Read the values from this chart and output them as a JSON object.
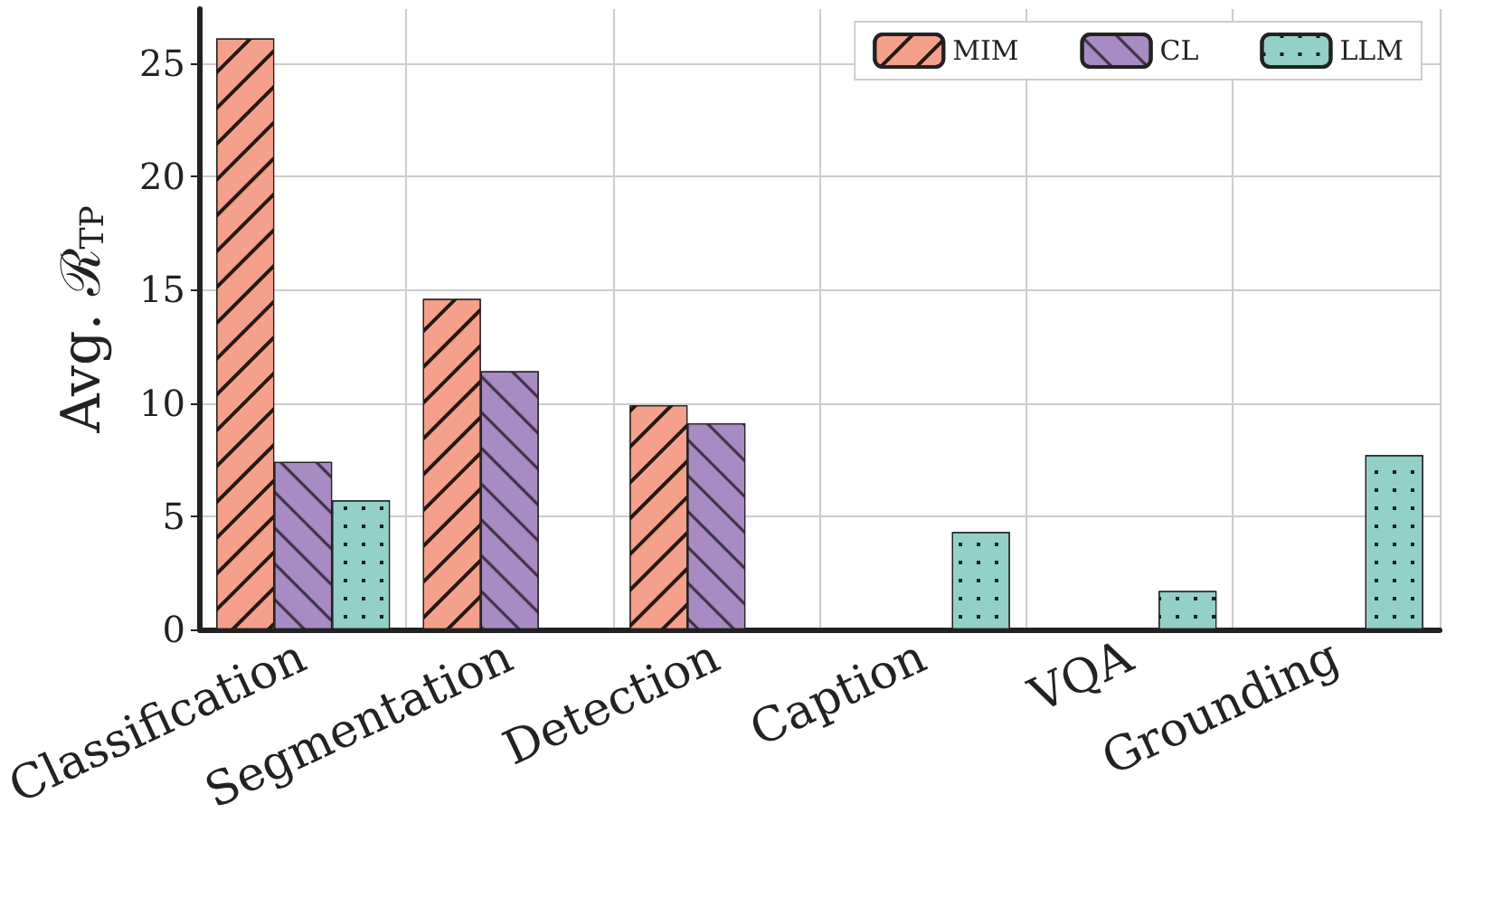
{
  "chart_data": {
    "type": "bar",
    "ylabel": "Avg. ℛ$_{TP}$",
    "categories": [
      "Classification",
      "Segmentation",
      "Detection",
      "Caption",
      "VQA",
      "Grounding"
    ],
    "series": [
      {
        "name": "MIM",
        "color": "#f4a08a",
        "values": [
          26.1,
          14.6,
          9.9,
          null,
          null,
          null
        ]
      },
      {
        "name": "CL",
        "color": "#a98bc4",
        "values": [
          7.4,
          11.4,
          9.1,
          null,
          null,
          null
        ]
      },
      {
        "name": "LLM",
        "color": "#93d0c8",
        "values": [
          5.7,
          null,
          null,
          4.3,
          1.7,
          7.7
        ]
      }
    ],
    "ylim": [
      0,
      27.4
    ],
    "yticks": [
      0,
      5,
      10,
      15,
      20,
      25
    ],
    "grid": true,
    "legend": "top right"
  }
}
